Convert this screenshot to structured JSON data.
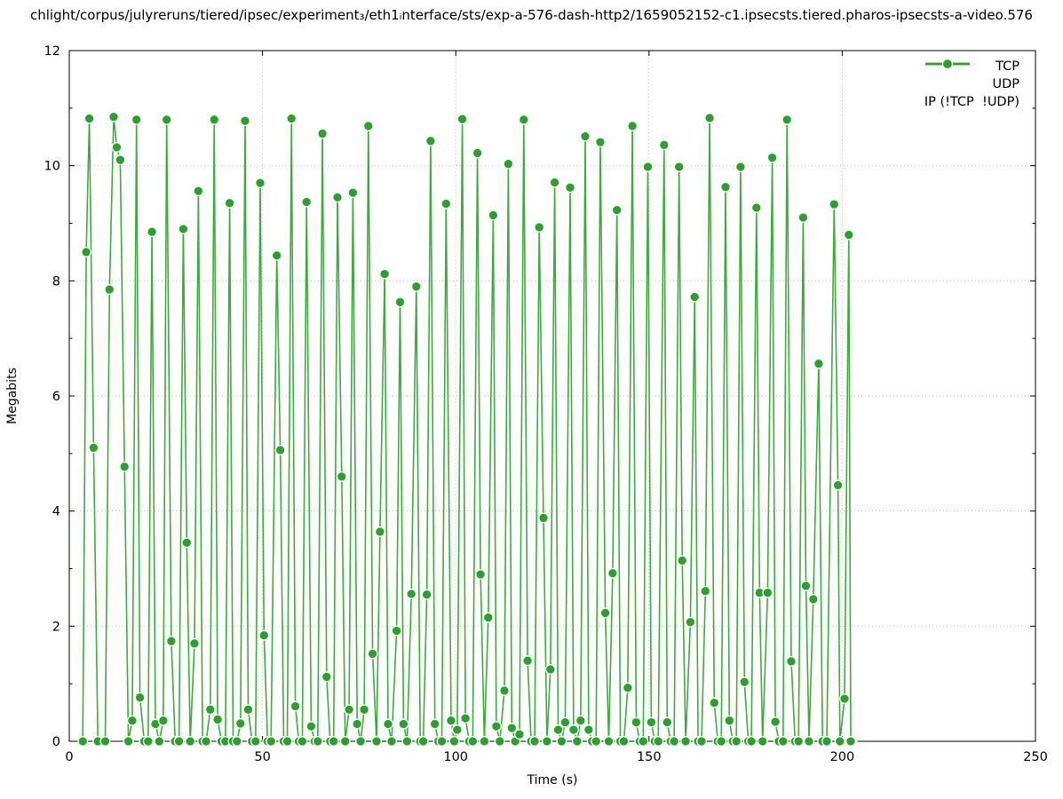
{
  "chart_data": {
    "type": "line",
    "title": "chlight/corpus/julyreruns/tiered/ipsec/experiment₃/eth1ᵢnterface/sts/exp-a-576-dash-http2/1659052152-c1.ipsecsts.tiered.pharos-ipsecsts-a-video.576",
    "xlabel": "Time (s)",
    "ylabel": "Megabits",
    "xlim": [
      0,
      250
    ],
    "ylim": [
      0,
      12
    ],
    "xticks": [
      0,
      50,
      100,
      150,
      200,
      250
    ],
    "yticks": [
      0,
      2,
      4,
      6,
      8,
      10,
      12
    ],
    "grid": "dotted both axes",
    "legend_position": "top-right-inside",
    "series": [
      {
        "name": "TCP",
        "color": "#1f77b4",
        "points": []
      },
      {
        "name": "UDP",
        "color": "#ff7f0e",
        "points": [
          [
            202.6,
            0
          ]
        ]
      },
      {
        "name": "IP (!TCP  !UDP)",
        "color": "#2ca02c",
        "points": [
          [
            3.5,
            0
          ],
          [
            4.4,
            8.5
          ],
          [
            5.2,
            10.82
          ],
          [
            6.3,
            5.1
          ],
          [
            7.4,
            0
          ],
          [
            9.3,
            0
          ],
          [
            10.4,
            7.85
          ],
          [
            11.5,
            10.85
          ],
          [
            12.3,
            10.32
          ],
          [
            13.2,
            10.1
          ],
          [
            14.3,
            4.77
          ],
          [
            15.3,
            0
          ],
          [
            16.3,
            0.36
          ],
          [
            17.4,
            10.8
          ],
          [
            18.3,
            0.76
          ],
          [
            19.4,
            0
          ],
          [
            20.4,
            0
          ],
          [
            21.4,
            8.85
          ],
          [
            22.3,
            0.3
          ],
          [
            23.3,
            0
          ],
          [
            24.3,
            0.36
          ],
          [
            25.2,
            10.8
          ],
          [
            26.4,
            1.74
          ],
          [
            27.4,
            0
          ],
          [
            28.4,
            0
          ],
          [
            29.5,
            8.9
          ],
          [
            30.4,
            3.45
          ],
          [
            31.3,
            0
          ],
          [
            32.4,
            1.7
          ],
          [
            33.4,
            9.56
          ],
          [
            34.5,
            0
          ],
          [
            35.4,
            0
          ],
          [
            36.5,
            0.55
          ],
          [
            37.5,
            10.8
          ],
          [
            38.4,
            0.38
          ],
          [
            39.4,
            0
          ],
          [
            40.4,
            0
          ],
          [
            41.5,
            9.35
          ],
          [
            42.4,
            0
          ],
          [
            43.4,
            0
          ],
          [
            44.3,
            0.31
          ],
          [
            45.5,
            10.78
          ],
          [
            46.3,
            0.55
          ],
          [
            47.3,
            0
          ],
          [
            48.2,
            0
          ],
          [
            49.4,
            9.7
          ],
          [
            50.4,
            1.84
          ],
          [
            51.3,
            0
          ],
          [
            52.2,
            0
          ],
          [
            53.7,
            8.44
          ],
          [
            54.6,
            5.06
          ],
          [
            55.5,
            0
          ],
          [
            56.4,
            0
          ],
          [
            57.5,
            10.82
          ],
          [
            58.5,
            0.61
          ],
          [
            59.4,
            0
          ],
          [
            60.3,
            0
          ],
          [
            61.4,
            9.37
          ],
          [
            62.6,
            0.26
          ],
          [
            63.5,
            0
          ],
          [
            64.3,
            0
          ],
          [
            65.5,
            10.56
          ],
          [
            66.6,
            1.12
          ],
          [
            67.5,
            0
          ],
          [
            68.4,
            0
          ],
          [
            69.4,
            9.45
          ],
          [
            70.5,
            4.6
          ],
          [
            71.4,
            0
          ],
          [
            72.4,
            0.55
          ],
          [
            73.4,
            9.53
          ],
          [
            74.5,
            0.3
          ],
          [
            75.4,
            0
          ],
          [
            76.3,
            0.55
          ],
          [
            77.4,
            10.69
          ],
          [
            78.5,
            1.52
          ],
          [
            79.5,
            0
          ],
          [
            80.4,
            3.64
          ],
          [
            81.6,
            8.12
          ],
          [
            82.5,
            0.3
          ],
          [
            83.4,
            0
          ],
          [
            84.7,
            1.92
          ],
          [
            85.6,
            7.63
          ],
          [
            86.5,
            0.3
          ],
          [
            87.4,
            0
          ],
          [
            88.5,
            2.56
          ],
          [
            89.8,
            7.9
          ],
          [
            90.8,
            0
          ],
          [
            91.6,
            0
          ],
          [
            92.5,
            2.55
          ],
          [
            93.5,
            10.43
          ],
          [
            94.6,
            0.3
          ],
          [
            95.5,
            0
          ],
          [
            96.4,
            0
          ],
          [
            97.5,
            9.34
          ],
          [
            98.8,
            0.36
          ],
          [
            99.6,
            0
          ],
          [
            100.4,
            0.2
          ],
          [
            101.7,
            10.81
          ],
          [
            102.5,
            0.4
          ],
          [
            103.5,
            0
          ],
          [
            104.4,
            0
          ],
          [
            105.6,
            10.22
          ],
          [
            106.4,
            2.9
          ],
          [
            107.4,
            0
          ],
          [
            108.4,
            2.15
          ],
          [
            109.7,
            9.14
          ],
          [
            110.5,
            0.26
          ],
          [
            111.4,
            0
          ],
          [
            112.6,
            0.88
          ],
          [
            113.6,
            10.03
          ],
          [
            114.5,
            0.23
          ],
          [
            115.4,
            0
          ],
          [
            116.5,
            0.12
          ],
          [
            117.6,
            10.8
          ],
          [
            118.6,
            1.4
          ],
          [
            119.5,
            0
          ],
          [
            120.4,
            0
          ],
          [
            121.6,
            8.93
          ],
          [
            122.7,
            3.88
          ],
          [
            123.6,
            0
          ],
          [
            124.5,
            1.25
          ],
          [
            125.6,
            9.71
          ],
          [
            126.5,
            0.2
          ],
          [
            127.4,
            0
          ],
          [
            128.3,
            0.33
          ],
          [
            129.6,
            9.62
          ],
          [
            130.5,
            0.2
          ],
          [
            131.4,
            0
          ],
          [
            132.3,
            0.36
          ],
          [
            133.5,
            10.51
          ],
          [
            134.4,
            0.2
          ],
          [
            135.3,
            0
          ],
          [
            136.3,
            0
          ],
          [
            137.4,
            10.41
          ],
          [
            138.7,
            2.23
          ],
          [
            139.6,
            0
          ],
          [
            140.6,
            2.92
          ],
          [
            141.7,
            9.23
          ],
          [
            142.6,
            0
          ],
          [
            143.5,
            0
          ],
          [
            144.5,
            0.93
          ],
          [
            145.7,
            10.69
          ],
          [
            146.7,
            0.33
          ],
          [
            147.6,
            0
          ],
          [
            148.5,
            0
          ],
          [
            149.7,
            9.98
          ],
          [
            150.6,
            0.33
          ],
          [
            151.5,
            0
          ],
          [
            152.4,
            0
          ],
          [
            153.9,
            10.36
          ],
          [
            154.7,
            0.33
          ],
          [
            155.6,
            0
          ],
          [
            156.5,
            0
          ],
          [
            157.8,
            9.98
          ],
          [
            158.6,
            3.14
          ],
          [
            159.5,
            0
          ],
          [
            160.7,
            2.07
          ],
          [
            161.8,
            7.72
          ],
          [
            162.7,
            0
          ],
          [
            163.6,
            0
          ],
          [
            164.6,
            2.61
          ],
          [
            165.7,
            10.83
          ],
          [
            166.9,
            0.67
          ],
          [
            167.8,
            0
          ],
          [
            168.7,
            0
          ],
          [
            169.8,
            9.63
          ],
          [
            170.8,
            0.36
          ],
          [
            171.7,
            0
          ],
          [
            172.6,
            0
          ],
          [
            173.7,
            9.98
          ],
          [
            174.7,
            1.03
          ],
          [
            175.7,
            0
          ],
          [
            176.5,
            0
          ],
          [
            177.8,
            9.27
          ],
          [
            178.6,
            2.58
          ],
          [
            179.4,
            0
          ],
          [
            180.7,
            2.58
          ],
          [
            181.9,
            10.14
          ],
          [
            182.7,
            0.34
          ],
          [
            183.6,
            0
          ],
          [
            184.7,
            0
          ],
          [
            185.7,
            10.8
          ],
          [
            186.8,
            1.39
          ],
          [
            187.8,
            0
          ],
          [
            188.7,
            0
          ],
          [
            189.9,
            9.1
          ],
          [
            190.6,
            2.7
          ],
          [
            191.4,
            0
          ],
          [
            192.5,
            2.47
          ],
          [
            193.9,
            6.56
          ],
          [
            194.9,
            0
          ],
          [
            196.0,
            0
          ],
          [
            197.9,
            9.33
          ],
          [
            198.9,
            4.45
          ],
          [
            199.4,
            0
          ],
          [
            200.6,
            0.74
          ],
          [
            201.7,
            8.8
          ],
          [
            202.2,
            0
          ]
        ]
      }
    ]
  }
}
